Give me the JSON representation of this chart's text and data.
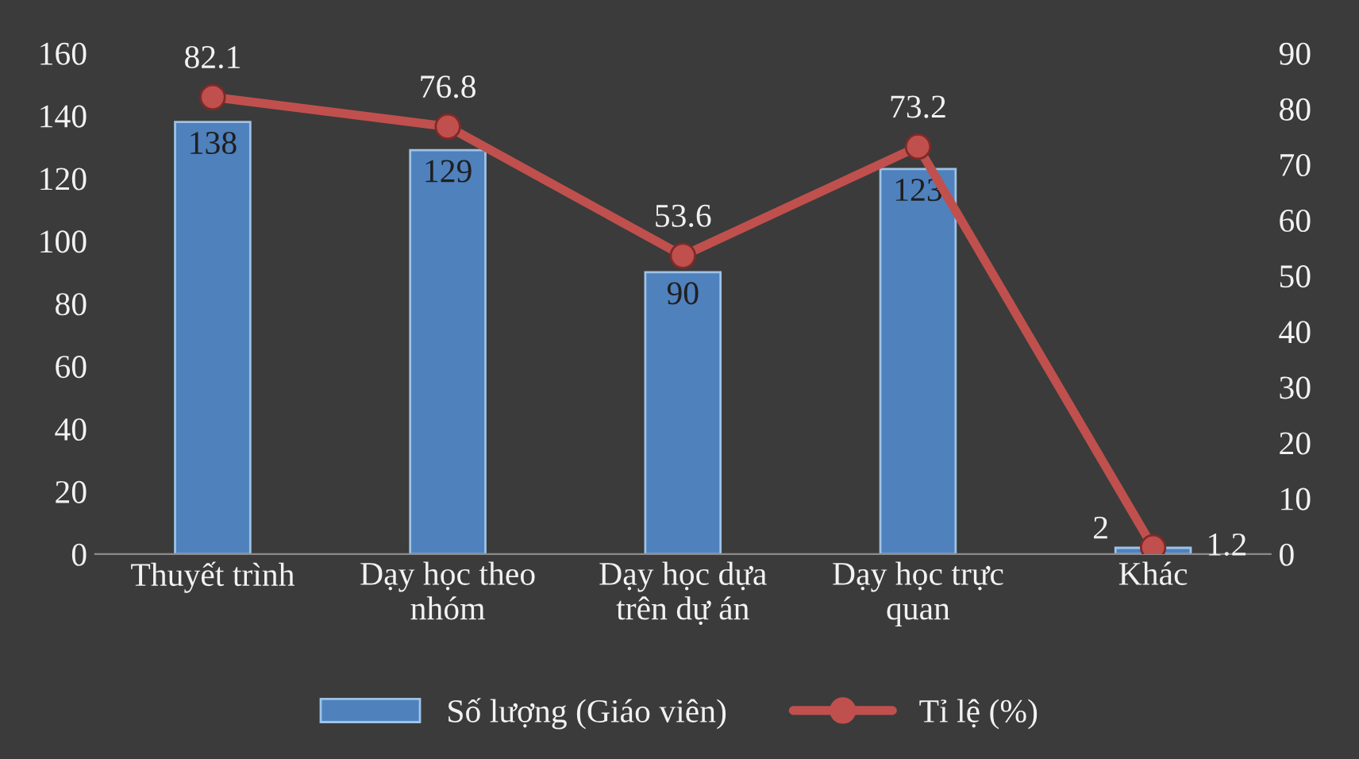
{
  "chart_data": {
    "type": "bar",
    "categories": [
      "Thuyết trình",
      "Dạy học theo\nnhóm",
      "Dạy học dựa\ntrên dự án",
      "Dạy học trực\nquan",
      "Khác"
    ],
    "series": [
      {
        "name": "Số lượng (Giáo viên)",
        "color": "#4f81bd",
        "values": [
          138,
          129,
          90,
          123,
          2
        ]
      },
      {
        "name": "Tỉ lệ (%)",
        "type": "line",
        "axis": "y2",
        "color": "#c0504d",
        "values": [
          82.1,
          76.8,
          53.6,
          73.2,
          1.2
        ]
      }
    ],
    "ylim": [
      0,
      160
    ],
    "yticks": [
      0,
      20,
      40,
      60,
      80,
      100,
      120,
      140,
      160
    ],
    "y2lim": [
      0,
      90
    ],
    "y2ticks": [
      0,
      10,
      20,
      30,
      40,
      50,
      60,
      70,
      80,
      90
    ],
    "data_labels": true,
    "marker": "circle",
    "grid": false,
    "legend": "bottom"
  }
}
